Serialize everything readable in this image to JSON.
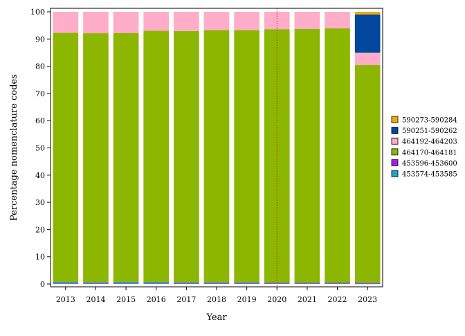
{
  "chart_data": {
    "type": "bar",
    "stacked": true,
    "xlabel": "Year",
    "ylabel": "Percentage nomenclature codes",
    "ylim": [
      0,
      100
    ],
    "yticks": [
      0,
      10,
      20,
      30,
      40,
      50,
      60,
      70,
      80,
      90,
      100
    ],
    "categories": [
      "2013",
      "2014",
      "2015",
      "2016",
      "2017",
      "2018",
      "2019",
      "2020",
      "2021",
      "2022",
      "2023"
    ],
    "series": [
      {
        "name": "453574-453585",
        "color": "#1aa5c8",
        "values": [
          0.5,
          0.3,
          0.5,
          0.5,
          0.3,
          0.3,
          0.3,
          0.2,
          0.2,
          0.2,
          0.1
        ]
      },
      {
        "name": "453596-453600",
        "color": "#a020f0",
        "values": [
          0.2,
          0.3,
          0.2,
          0.2,
          0.3,
          0.3,
          0.3,
          0.3,
          0.3,
          0.3,
          0.3
        ]
      },
      {
        "name": "464170-464181",
        "color": "#8db600",
        "values": [
          91.6,
          91.5,
          91.5,
          92.3,
          92.3,
          92.7,
          92.7,
          93.1,
          93.2,
          93.4,
          80.0
        ]
      },
      {
        "name": "464192-464203",
        "color": "#ffadc9",
        "values": [
          7.7,
          7.9,
          7.8,
          7.0,
          7.1,
          6.7,
          6.7,
          6.4,
          6.3,
          6.1,
          4.6
        ]
      },
      {
        "name": "590251-590262",
        "color": "#00479d",
        "values": [
          0,
          0,
          0,
          0,
          0,
          0,
          0,
          0,
          0,
          0,
          14.0
        ]
      },
      {
        "name": "590273-590284",
        "color": "#f2a900",
        "values": [
          0,
          0,
          0,
          0,
          0,
          0,
          0,
          0,
          0,
          0,
          1.0
        ]
      }
    ],
    "annotations": [
      {
        "type": "vertical-dotted-line",
        "x": "2020",
        "color": "#b03a3a"
      }
    ],
    "legend": {
      "placement": "right",
      "order": [
        "590273-590284",
        "590251-590262",
        "464192-464203",
        "464170-464181",
        "453596-453600",
        "453574-453585"
      ]
    },
    "grid": false
  }
}
